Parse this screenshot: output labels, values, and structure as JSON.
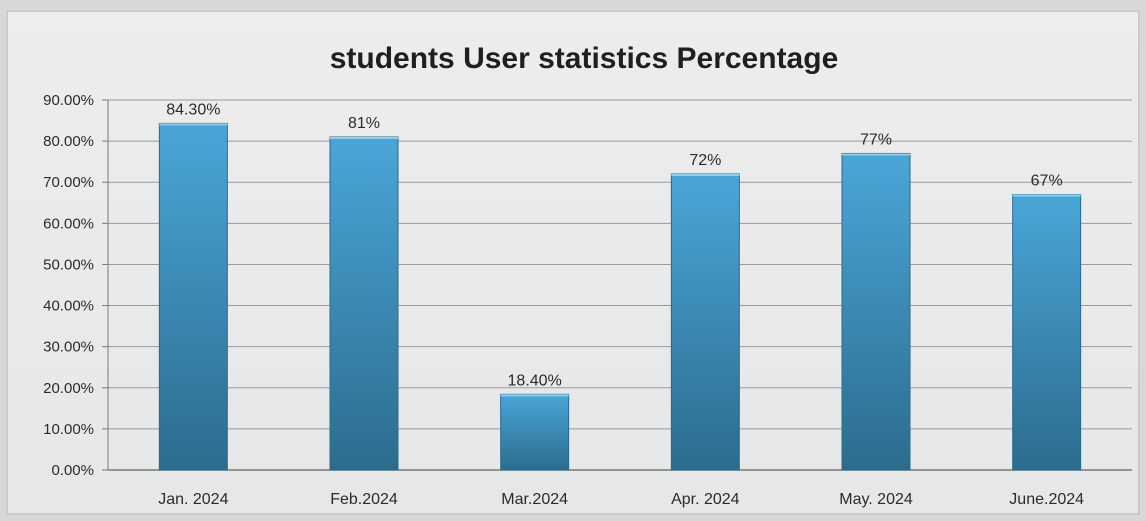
{
  "chart_data": {
    "type": "bar",
    "title": "students User statistics Percentage",
    "xlabel": "",
    "ylabel": "",
    "categories": [
      "Jan. 2024",
      "Feb.2024",
      "Mar.2024",
      "Apr. 2024",
      "May. 2024",
      "June.2024"
    ],
    "values": [
      84.3,
      81,
      18.4,
      72,
      77,
      67
    ],
    "data_labels": [
      "84.30%",
      "81%",
      "18.40%",
      "72%",
      "77%",
      "67%"
    ],
    "ylim": [
      0,
      90
    ],
    "yticks": [
      0,
      10,
      20,
      30,
      40,
      50,
      60,
      70,
      80,
      90
    ],
    "ytick_labels": [
      "0.00%",
      "10.00%",
      "20.00%",
      "30.00%",
      "40.00%",
      "50.00%",
      "60.00%",
      "70.00%",
      "80.00%",
      "90.00%"
    ],
    "grid": true,
    "legend": "none",
    "colors": {
      "bar_top": "#4aa6d8",
      "bar_bottom": "#2c6c8e",
      "grid": "#9a9a9a",
      "axis": "#7a7a7a"
    }
  }
}
